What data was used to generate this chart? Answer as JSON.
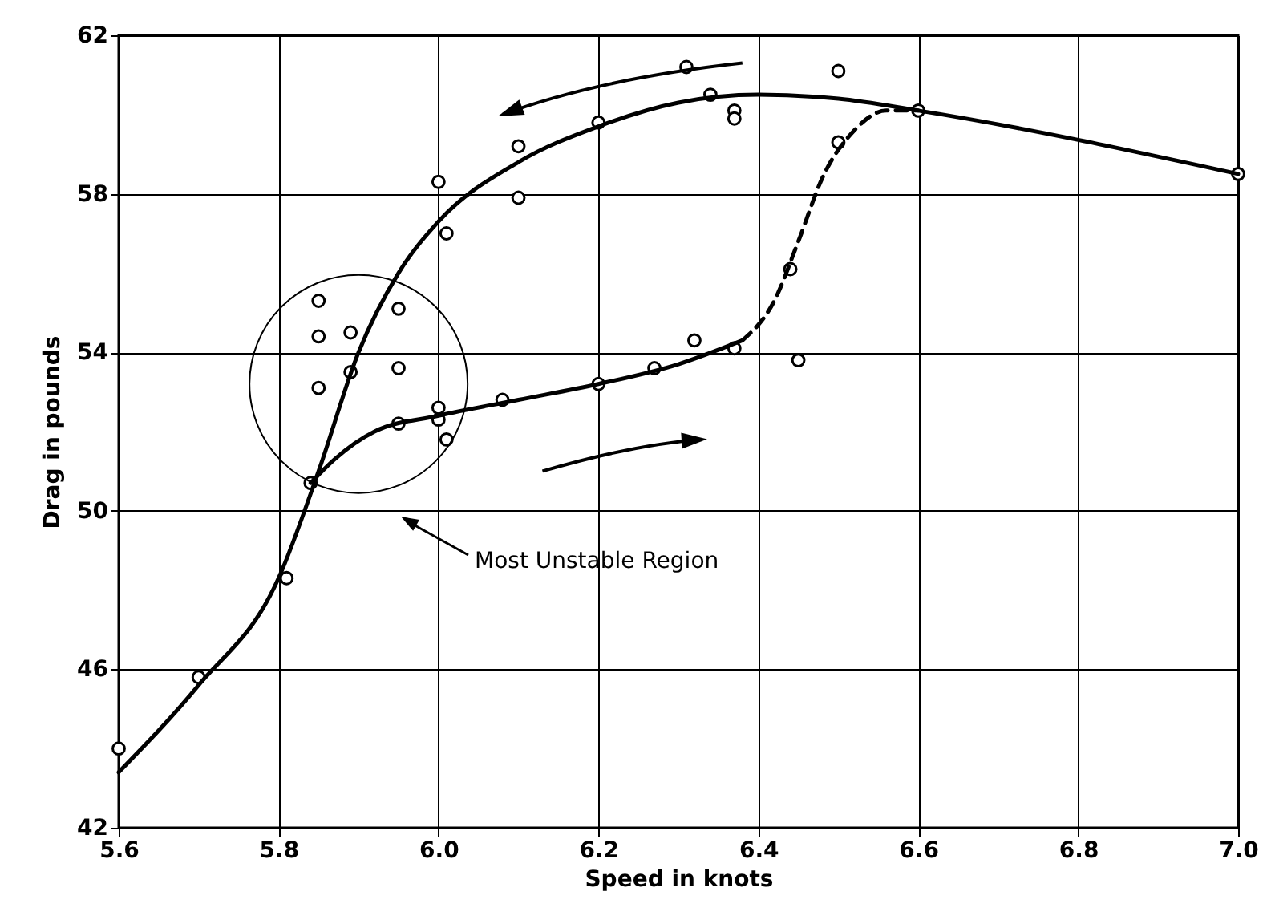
{
  "chart_data": {
    "type": "scatter",
    "xlabel": "Speed in knots",
    "ylabel": "Drag in pounds",
    "xlim": [
      5.6,
      7.0
    ],
    "ylim": [
      42,
      62
    ],
    "xticks": [
      5.6,
      5.8,
      {
        "value": 6,
        "label": "6.0"
      },
      6.2,
      6.4,
      6.6,
      6.8,
      {
        "value": 7,
        "label": "7.0"
      }
    ],
    "yticks": [
      42,
      46,
      50,
      54,
      58,
      62
    ],
    "grid": true,
    "marker": "circle",
    "annotations": [
      "Most Unstable Region"
    ],
    "series": [
      {
        "color": "#000000",
        "x": [
          5.6,
          5.7,
          5.81,
          5.84,
          5.85,
          5.85,
          5.85,
          5.89,
          5.89,
          5.95,
          5.95,
          5.95,
          6.0,
          6.0,
          6.0,
          6.01,
          6.01,
          6.08,
          6.1,
          6.1,
          6.2,
          6.2,
          6.27,
          6.31,
          6.32,
          6.34,
          6.37,
          6.37,
          6.37,
          6.44,
          6.45,
          6.5,
          6.5,
          6.6,
          7.0
        ],
        "values": [
          44.0,
          45.8,
          48.3,
          50.7,
          53.1,
          54.4,
          55.3,
          53.5,
          54.5,
          55.1,
          53.6,
          52.2,
          58.3,
          52.6,
          52.3,
          51.8,
          57.0,
          52.8,
          59.2,
          57.9,
          59.8,
          53.2,
          53.6,
          61.2,
          54.3,
          60.5,
          60.1,
          59.9,
          54.1,
          56.1,
          53.8,
          61.1,
          59.3,
          60.1,
          58.5
        ]
      },
      {
        "type": "line",
        "color": "#000000",
        "marker": "none",
        "line_style": "solid",
        "x": [
          5.6,
          5.7,
          5.8,
          5.85,
          5.9,
          5.95,
          6.0,
          6.1,
          6.2,
          6.3,
          6.4,
          6.5,
          6.6,
          7.0
        ],
        "values": [
          43.4,
          45.6,
          48.3,
          51.0,
          54.0,
          56.0,
          57.3,
          58.8,
          59.7,
          60.3,
          60.5,
          60.4,
          60.1,
          58.5
        ]
      },
      {
        "type": "line",
        "color": "#000000",
        "marker": "none",
        "line_style": "solid",
        "x": [
          5.84,
          5.87,
          5.92,
          6.0,
          6.1,
          6.2,
          6.3,
          6.38
        ],
        "values": [
          50.7,
          51.3,
          52.0,
          52.4,
          52.8,
          53.2,
          53.7,
          54.3
        ]
      },
      {
        "type": "line",
        "color": "#000000",
        "marker": "none",
        "line_style": "dashed",
        "x": [
          6.38,
          6.42,
          6.45,
          6.48,
          6.52,
          6.56,
          6.6
        ],
        "values": [
          54.3,
          55.3,
          56.8,
          58.4,
          59.6,
          60.1,
          60.1
        ]
      }
    ]
  }
}
